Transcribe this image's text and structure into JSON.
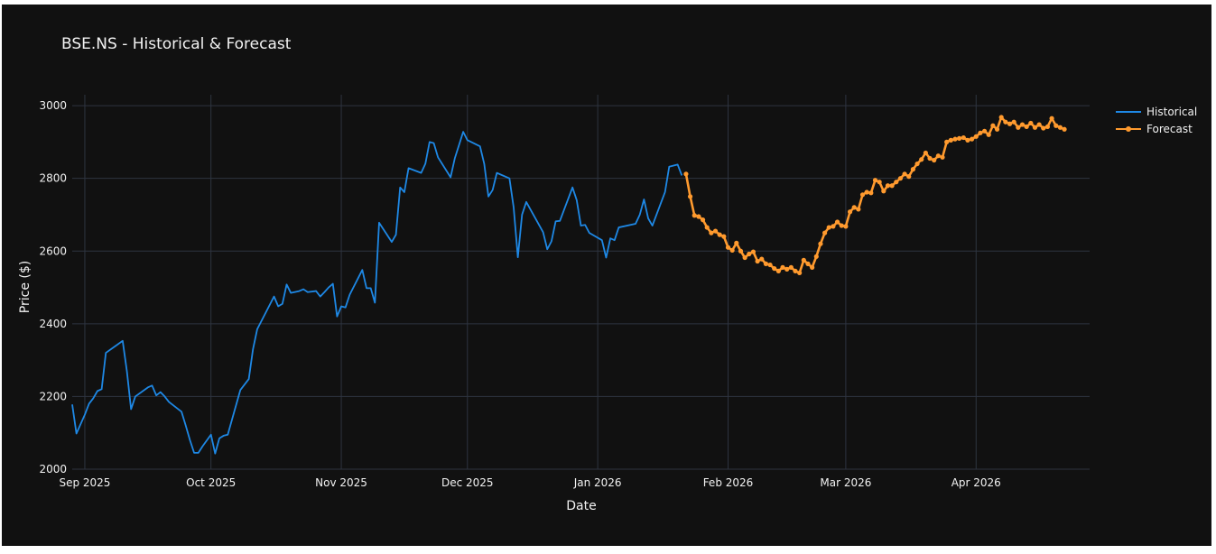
{
  "chart_data": {
    "type": "line",
    "title": "BSE.NS - Historical & Forecast",
    "xlabel": "Date",
    "ylabel": "Price ($)",
    "xlim": [
      "2025-08-29",
      "2026-04-28"
    ],
    "ylim": [
      2000,
      3030
    ],
    "yticks": [
      2000,
      2200,
      2400,
      2600,
      2800,
      3000
    ],
    "xticks": [
      {
        "date": "2025-09-01",
        "label": "Sep 2025"
      },
      {
        "date": "2025-10-01",
        "label": "Oct 2025"
      },
      {
        "date": "2025-11-01",
        "label": "Nov 2025"
      },
      {
        "date": "2025-12-01",
        "label": "Dec 2025"
      },
      {
        "date": "2026-01-01",
        "label": "Jan 2026"
      },
      {
        "date": "2026-02-01",
        "label": "Feb 2026"
      },
      {
        "date": "2026-03-01",
        "label": "Mar 2026"
      },
      {
        "date": "2026-04-01",
        "label": "Apr 2026"
      }
    ],
    "grid": true,
    "legend_position": "top-right",
    "background": "#111111",
    "series": [
      {
        "name": "Historical",
        "color": "#1e88e5",
        "markers": false,
        "points": [
          [
            "2025-08-29",
            2178
          ],
          [
            "2025-08-30",
            2098
          ],
          [
            "2025-09-01",
            2150
          ],
          [
            "2025-09-02",
            2180
          ],
          [
            "2025-09-03",
            2195
          ],
          [
            "2025-09-04",
            2215
          ],
          [
            "2025-09-05",
            2220
          ],
          [
            "2025-09-06",
            2320
          ],
          [
            "2025-09-10",
            2353
          ],
          [
            "2025-09-11",
            2270
          ],
          [
            "2025-09-12",
            2165
          ],
          [
            "2025-09-13",
            2200
          ],
          [
            "2025-09-16",
            2225
          ],
          [
            "2025-09-17",
            2230
          ],
          [
            "2025-09-18",
            2203
          ],
          [
            "2025-09-19",
            2212
          ],
          [
            "2025-09-20",
            2200
          ],
          [
            "2025-09-21",
            2185
          ],
          [
            "2025-09-24",
            2158
          ],
          [
            "2025-09-25",
            2120
          ],
          [
            "2025-09-26",
            2080
          ],
          [
            "2025-09-27",
            2045
          ],
          [
            "2025-09-28",
            2045
          ],
          [
            "2025-09-29",
            2063
          ],
          [
            "2025-10-01",
            2095
          ],
          [
            "2025-10-02",
            2043
          ],
          [
            "2025-10-03",
            2085
          ],
          [
            "2025-10-04",
            2092
          ],
          [
            "2025-10-05",
            2095
          ],
          [
            "2025-10-08",
            2218
          ],
          [
            "2025-10-10",
            2248
          ],
          [
            "2025-10-11",
            2330
          ],
          [
            "2025-10-12",
            2385
          ],
          [
            "2025-10-16",
            2475
          ],
          [
            "2025-10-17",
            2448
          ],
          [
            "2025-10-18",
            2455
          ],
          [
            "2025-10-19",
            2508
          ],
          [
            "2025-10-20",
            2485
          ],
          [
            "2025-10-22",
            2490
          ],
          [
            "2025-10-23",
            2495
          ],
          [
            "2025-10-24",
            2487
          ],
          [
            "2025-10-26",
            2490
          ],
          [
            "2025-10-27",
            2475
          ],
          [
            "2025-10-28",
            2487
          ],
          [
            "2025-10-29",
            2500
          ],
          [
            "2025-10-30",
            2510
          ],
          [
            "2025-10-31",
            2420
          ],
          [
            "2025-11-01",
            2448
          ],
          [
            "2025-11-02",
            2445
          ],
          [
            "2025-11-03",
            2480
          ],
          [
            "2025-11-06",
            2548
          ],
          [
            "2025-11-07",
            2498
          ],
          [
            "2025-11-08",
            2498
          ],
          [
            "2025-11-09",
            2458
          ],
          [
            "2025-11-10",
            2678
          ],
          [
            "2025-11-13",
            2625
          ],
          [
            "2025-11-14",
            2645
          ],
          [
            "2025-11-15",
            2775
          ],
          [
            "2025-11-16",
            2762
          ],
          [
            "2025-11-17",
            2828
          ],
          [
            "2025-11-20",
            2815
          ],
          [
            "2025-11-21",
            2840
          ],
          [
            "2025-11-22",
            2900
          ],
          [
            "2025-11-23",
            2897
          ],
          [
            "2025-11-24",
            2858
          ],
          [
            "2025-11-27",
            2803
          ],
          [
            "2025-11-28",
            2855
          ],
          [
            "2025-11-30",
            2928
          ],
          [
            "2025-12-01",
            2905
          ],
          [
            "2025-12-04",
            2888
          ],
          [
            "2025-12-05",
            2840
          ],
          [
            "2025-12-06",
            2750
          ],
          [
            "2025-12-07",
            2768
          ],
          [
            "2025-12-08",
            2815
          ],
          [
            "2025-12-11",
            2800
          ],
          [
            "2025-12-12",
            2720
          ],
          [
            "2025-12-13",
            2583
          ],
          [
            "2025-12-14",
            2700
          ],
          [
            "2025-12-15",
            2735
          ],
          [
            "2025-12-19",
            2652
          ],
          [
            "2025-12-20",
            2605
          ],
          [
            "2025-12-21",
            2627
          ],
          [
            "2025-12-22",
            2682
          ],
          [
            "2025-12-23",
            2683
          ],
          [
            "2025-12-26",
            2775
          ],
          [
            "2025-12-27",
            2740
          ],
          [
            "2025-12-28",
            2670
          ],
          [
            "2025-12-29",
            2672
          ],
          [
            "2025-12-30",
            2650
          ],
          [
            "2026-01-02",
            2630
          ],
          [
            "2026-01-03",
            2582
          ],
          [
            "2026-01-04",
            2635
          ],
          [
            "2026-01-05",
            2630
          ],
          [
            "2026-01-06",
            2665
          ],
          [
            "2026-01-10",
            2675
          ],
          [
            "2026-01-11",
            2700
          ],
          [
            "2026-01-12",
            2742
          ],
          [
            "2026-01-13",
            2690
          ],
          [
            "2026-01-14",
            2670
          ],
          [
            "2026-01-17",
            2762
          ],
          [
            "2026-01-18",
            2832
          ],
          [
            "2026-01-20",
            2838
          ],
          [
            "2026-01-21",
            2808
          ]
        ]
      },
      {
        "name": "Forecast",
        "color": "#ff9a2e",
        "markers": true,
        "points": [
          [
            "2026-01-22",
            2812
          ],
          [
            "2026-01-23",
            2750
          ],
          [
            "2026-01-24",
            2698
          ],
          [
            "2026-01-25",
            2695
          ],
          [
            "2026-01-26",
            2686
          ],
          [
            "2026-01-27",
            2665
          ],
          [
            "2026-01-28",
            2650
          ],
          [
            "2026-01-29",
            2655
          ],
          [
            "2026-01-30",
            2645
          ],
          [
            "2026-01-31",
            2640
          ],
          [
            "2026-02-01",
            2610
          ],
          [
            "2026-02-02",
            2602
          ],
          [
            "2026-02-03",
            2622
          ],
          [
            "2026-02-04",
            2600
          ],
          [
            "2026-02-05",
            2582
          ],
          [
            "2026-02-06",
            2592
          ],
          [
            "2026-02-07",
            2598
          ],
          [
            "2026-02-08",
            2572
          ],
          [
            "2026-02-09",
            2578
          ],
          [
            "2026-02-10",
            2565
          ],
          [
            "2026-02-11",
            2562
          ],
          [
            "2026-02-12",
            2552
          ],
          [
            "2026-02-13",
            2545
          ],
          [
            "2026-02-14",
            2555
          ],
          [
            "2026-02-15",
            2550
          ],
          [
            "2026-02-16",
            2555
          ],
          [
            "2026-02-17",
            2545
          ],
          [
            "2026-02-18",
            2540
          ],
          [
            "2026-02-19",
            2575
          ],
          [
            "2026-02-20",
            2565
          ],
          [
            "2026-02-21",
            2555
          ],
          [
            "2026-02-22",
            2585
          ],
          [
            "2026-02-23",
            2620
          ],
          [
            "2026-02-24",
            2650
          ],
          [
            "2026-02-25",
            2665
          ],
          [
            "2026-02-26",
            2668
          ],
          [
            "2026-02-27",
            2680
          ],
          [
            "2026-02-28",
            2670
          ],
          [
            "2026-03-01",
            2668
          ],
          [
            "2026-03-02",
            2708
          ],
          [
            "2026-03-03",
            2720
          ],
          [
            "2026-03-04",
            2715
          ],
          [
            "2026-03-05",
            2755
          ],
          [
            "2026-03-06",
            2762
          ],
          [
            "2026-03-07",
            2760
          ],
          [
            "2026-03-08",
            2795
          ],
          [
            "2026-03-09",
            2790
          ],
          [
            "2026-03-10",
            2765
          ],
          [
            "2026-03-11",
            2780
          ],
          [
            "2026-03-12",
            2780
          ],
          [
            "2026-03-13",
            2790
          ],
          [
            "2026-03-14",
            2800
          ],
          [
            "2026-03-15",
            2812
          ],
          [
            "2026-03-16",
            2805
          ],
          [
            "2026-03-17",
            2825
          ],
          [
            "2026-03-18",
            2840
          ],
          [
            "2026-03-19",
            2852
          ],
          [
            "2026-03-20",
            2870
          ],
          [
            "2026-03-21",
            2855
          ],
          [
            "2026-03-22",
            2850
          ],
          [
            "2026-03-23",
            2862
          ],
          [
            "2026-03-24",
            2858
          ],
          [
            "2026-03-25",
            2900
          ],
          [
            "2026-03-26",
            2905
          ],
          [
            "2026-03-27",
            2908
          ],
          [
            "2026-03-28",
            2910
          ],
          [
            "2026-03-29",
            2912
          ],
          [
            "2026-03-30",
            2905
          ],
          [
            "2026-03-31",
            2908
          ],
          [
            "2026-04-01",
            2915
          ],
          [
            "2026-04-02",
            2925
          ],
          [
            "2026-04-03",
            2930
          ],
          [
            "2026-04-04",
            2920
          ],
          [
            "2026-04-05",
            2945
          ],
          [
            "2026-04-06",
            2935
          ],
          [
            "2026-04-07",
            2968
          ],
          [
            "2026-04-08",
            2955
          ],
          [
            "2026-04-09",
            2950
          ],
          [
            "2026-04-10",
            2955
          ],
          [
            "2026-04-11",
            2940
          ],
          [
            "2026-04-12",
            2948
          ],
          [
            "2026-04-13",
            2942
          ],
          [
            "2026-04-14",
            2952
          ],
          [
            "2026-04-15",
            2940
          ],
          [
            "2026-04-16",
            2948
          ],
          [
            "2026-04-17",
            2938
          ],
          [
            "2026-04-18",
            2942
          ],
          [
            "2026-04-19",
            2965
          ],
          [
            "2026-04-20",
            2945
          ],
          [
            "2026-04-21",
            2940
          ],
          [
            "2026-04-22",
            2935
          ]
        ]
      }
    ]
  }
}
